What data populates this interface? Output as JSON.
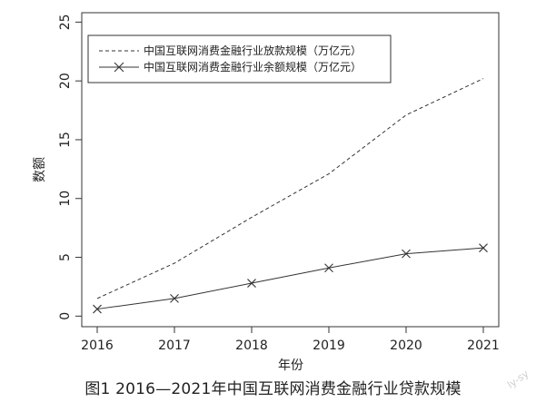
{
  "caption": "图1  2016—2021年中国互联网消费金融行业贷款规模",
  "watermark": "ly-sy",
  "chart_data": {
    "type": "line",
    "title": "",
    "xlabel": "年份",
    "ylabel": "数额",
    "x": [
      2016,
      2017,
      2018,
      2019,
      2020,
      2021
    ],
    "xticks": [
      "2016",
      "2017",
      "2018",
      "2019",
      "2020",
      "2021"
    ],
    "yticks": [
      "0",
      "5",
      "10",
      "15",
      "20",
      "25"
    ],
    "xlim": [
      2015.8,
      2021.2
    ],
    "ylim": [
      -0.9,
      25.8
    ],
    "grid": false,
    "legend_position": "top-left",
    "series": [
      {
        "name": "中国互联网消费金融行业放款规模（万亿元）",
        "values": [
          1.5,
          4.5,
          8.4,
          12.1,
          17.1,
          20.2
        ],
        "line_style": "dashed",
        "marker": "none",
        "color": "#333333"
      },
      {
        "name": "中国互联网消费金融行业余额规模（万亿元）",
        "values": [
          0.6,
          1.5,
          2.8,
          4.1,
          5.3,
          5.8
        ],
        "line_style": "solid",
        "marker": "x",
        "color": "#333333"
      }
    ]
  }
}
